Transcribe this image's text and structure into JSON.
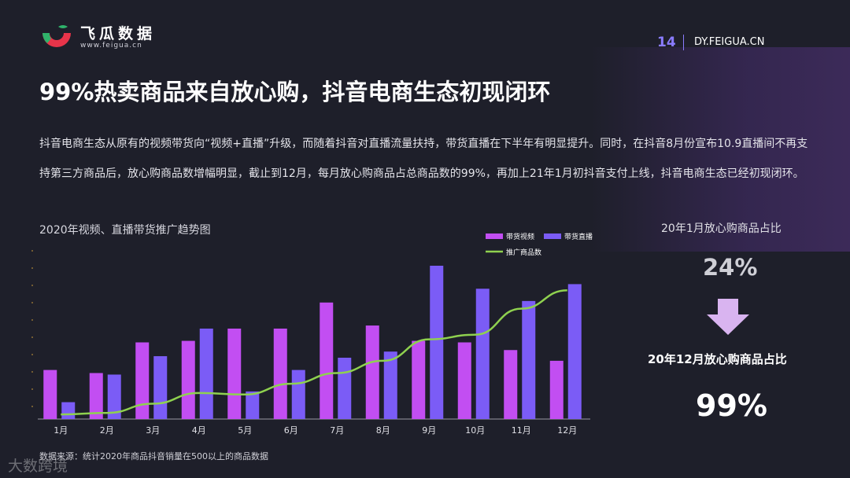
{
  "header": {
    "logo_cn": "飞瓜数据",
    "logo_en": "www.feigua.cn",
    "page_number": "14",
    "site": "DY.FEIGUA.CN"
  },
  "title": "99%热卖商品来自放心购，抖音电商生态初现闭环",
  "paragraph": "抖音电商生态从原有的视频带货向“视频+直播”升级，而随着抖音对直播流量扶持，带货直播在下半年有明显提升。同时，在抖音8月份宣布10.9直播间不再支持第三方商品后，放心购商品数增幅明显，截止到12月，每月放心购商品占总商品数的99%，再加上21年1月初抖音支付上线，抖音电商生态已经初现闭环。",
  "chart_title": "2020年视频、直播带货推广趋势图",
  "chart_data": {
    "type": "bar",
    "categories": [
      "1月",
      "2月",
      "3月",
      "4月",
      "5月",
      "6月",
      "7月",
      "8月",
      "9月",
      "10月",
      "11月",
      "12月"
    ],
    "series": [
      {
        "name": "带货视频",
        "type": "bar",
        "color": "#c24ef2",
        "values": [
          32,
          30,
          50,
          51,
          59,
          59,
          76,
          61,
          51,
          50,
          45,
          38
        ]
      },
      {
        "name": "带货直播",
        "type": "bar",
        "color": "#7b5cf6",
        "values": [
          11,
          29,
          41,
          59,
          18,
          32,
          40,
          44,
          100,
          85,
          77,
          88
        ]
      },
      {
        "name": "推广商品数",
        "type": "line",
        "color": "#8fd14f",
        "values": [
          3,
          4,
          10,
          17,
          16,
          23,
          30,
          38,
          52,
          55,
          72,
          84
        ]
      }
    ],
    "ylim": [
      0,
      100
    ],
    "legend": "top-right"
  },
  "source": "数据来源：统计2020年商品抖音销量在500以上的商品数据",
  "side": {
    "label1": "20年1月放心购商品占比",
    "value1": "24%",
    "label2": "20年12月放心购商品占比",
    "value2": "99%"
  },
  "watermark": "大数跨境"
}
